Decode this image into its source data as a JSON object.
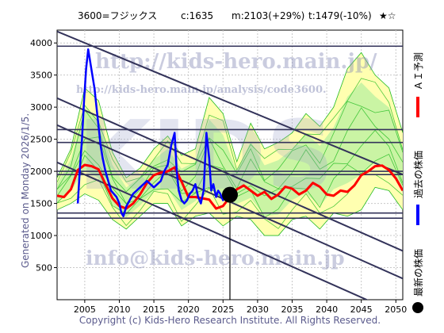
{
  "header": {
    "code_name": "3600=フジックス",
    "current": "c:1635",
    "mean": "m:2103(+29%)",
    "target": "t:1479(-10%)",
    "rating": "★☆"
  },
  "side_label": "Generated on Monday 2026/1/5.",
  "footer": "Copyright (c) Kids-Hero Research Institute. All Rights Reserved.",
  "watermarks": {
    "url": "http://kids-hero.main.jp/",
    "analysis_url": "http://kids-hero.main.jp/analysis/code3600.",
    "big": "KIDS",
    "email": "info@kids-hero.main.jp"
  },
  "legend": [
    {
      "name": "ＡＩ予測",
      "color": "#ff0000",
      "kind": "line"
    },
    {
      "name": "過去の株価",
      "color": "#0000ff",
      "kind": "line"
    },
    {
      "name": "最新の株価",
      "color": "#000000",
      "kind": "dot"
    }
  ],
  "colors": {
    "ai": "#ff0000",
    "past": "#0000ff",
    "band_yellow": "#ffffb0",
    "band_green": "#b8f0a0",
    "band_line": "#22bb22",
    "channel": "#33335a",
    "grid": "#c8c8c8"
  },
  "chart_data": {
    "type": "line",
    "xlim": [
      2001,
      2051
    ],
    "ylim": [
      0,
      4200
    ],
    "x_ticks": [
      2005,
      2010,
      2015,
      2020,
      2025,
      2030,
      2035,
      2040,
      2045,
      2050
    ],
    "y_ticks": [
      500,
      1000,
      1500,
      2000,
      2500,
      3000,
      3500,
      4000
    ],
    "latest": {
      "x": 2026.0,
      "y": 1635
    },
    "hlines": [
      3950,
      2650,
      2450,
      2000,
      1950,
      1350,
      1270
    ],
    "channel_lines": [
      {
        "x": [
          2001,
          2051
        ],
        "y": [
          4180,
          1950
        ]
      },
      {
        "x": [
          2001,
          2051
        ],
        "y": [
          3140,
          760
        ]
      },
      {
        "x": [
          2001,
          2051
        ],
        "y": [
          2720,
          330
        ]
      },
      {
        "x": [
          2001,
          2051
        ],
        "y": [
          2140,
          -250
        ]
      }
    ],
    "ai_forecast": {
      "x": [
        2001,
        2002,
        2003,
        2004,
        2005,
        2006,
        2007,
        2008,
        2009,
        2010,
        2011,
        2012,
        2013,
        2014,
        2015,
        2016,
        2017,
        2018,
        2019,
        2020,
        2021,
        2022,
        2023,
        2024,
        2025,
        2026,
        2027,
        2028,
        2029,
        2030,
        2031,
        2032,
        2033,
        2034,
        2035,
        2036,
        2037,
        2038,
        2039,
        2040,
        2041,
        2042,
        2043,
        2044,
        2045,
        2046,
        2047,
        2048,
        2049,
        2050,
        2051
      ],
      "y": [
        1620,
        1600,
        1720,
        2020,
        2100,
        2080,
        2030,
        1800,
        1580,
        1460,
        1420,
        1500,
        1640,
        1820,
        1940,
        1980,
        2000,
        2060,
        1840,
        1600,
        1600,
        1580,
        1560,
        1420,
        1460,
        1600,
        1720,
        1780,
        1700,
        1620,
        1680,
        1570,
        1640,
        1760,
        1730,
        1640,
        1700,
        1820,
        1760,
        1640,
        1620,
        1700,
        1680,
        1780,
        1940,
        2000,
        2080,
        2090,
        2020,
        1890,
        1700
      ]
    },
    "past_price": {
      "x": [
        2004.0,
        2004.3,
        2004.6,
        2004.9,
        2005.2,
        2005.5,
        2005.8,
        2006.1,
        2006.4,
        2006.7,
        2007.0,
        2007.3,
        2007.6,
        2008.0,
        2008.4,
        2008.8,
        2009.2,
        2009.6,
        2010.0,
        2010.3,
        2010.6,
        2011.0,
        2011.5,
        2012.0,
        2012.5,
        2013.0,
        2013.5,
        2014.0,
        2014.5,
        2015.0,
        2015.5,
        2016.0,
        2016.5,
        2017.0,
        2017.5,
        2018.0,
        2018.3,
        2018.6,
        2019.0,
        2019.4,
        2019.8,
        2020.2,
        2020.6,
        2021.0,
        2021.4,
        2021.8,
        2022.2,
        2022.6,
        2023.0,
        2023.3,
        2023.6,
        2024.0,
        2024.3,
        2024.6,
        2025.0,
        2025.4,
        2025.8,
        2026.0
      ],
      "y": [
        1500,
        2050,
        2500,
        3100,
        3600,
        3900,
        3700,
        3500,
        3300,
        3000,
        2700,
        2400,
        2200,
        2000,
        1850,
        1700,
        1650,
        1600,
        1500,
        1350,
        1300,
        1450,
        1550,
        1650,
        1700,
        1750,
        1800,
        1850,
        1800,
        1750,
        1800,
        1850,
        2000,
        2100,
        2400,
        2600,
        2000,
        1700,
        1550,
        1500,
        1550,
        1650,
        1700,
        1800,
        1600,
        1500,
        1700,
        2600,
        2200,
        1700,
        1800,
        1600,
        1700,
        1650,
        1550,
        1700,
        1650,
        1635
      ]
    },
    "band": {
      "x": [
        2001,
        2003,
        2005,
        2007,
        2009,
        2011,
        2013,
        2015,
        2017,
        2019,
        2021,
        2023,
        2025,
        2027,
        2029,
        2031,
        2033,
        2035,
        2037,
        2039,
        2041,
        2043,
        2045,
        2047,
        2049,
        2051
      ],
      "upper": [
        1900,
        2350,
        3300,
        3100,
        2300,
        1900,
        2050,
        2350,
        2550,
        2250,
        2350,
        3150,
        2900,
        2150,
        2750,
        2350,
        2450,
        2600,
        2900,
        2700,
        3000,
        3600,
        3850,
        3500,
        3300,
        2600
      ],
      "lower": [
        1400,
        1500,
        1650,
        1550,
        1250,
        1100,
        1300,
        1500,
        1500,
        1150,
        1300,
        1350,
        1150,
        1300,
        1250,
        1000,
        1000,
        1250,
        1300,
        1100,
        1350,
        1300,
        1400,
        1750,
        1700,
        1400
      ]
    }
  }
}
